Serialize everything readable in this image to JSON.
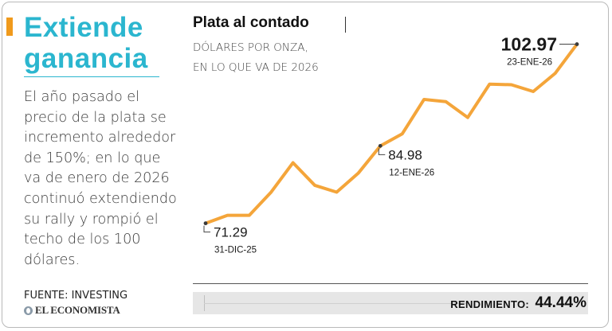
{
  "sidebar": {
    "headline_line1": "Extiende",
    "headline_line2": "ganancia",
    "body": "El año pasado el precio de la plata se incremento alrededor de 150%; en lo que va de enero de 2026 continuó extendiendo su rally y rompió el techo de los 100 dólares.",
    "source": "FUENTE: INVESTING",
    "brand": "EL ECONOMISTA"
  },
  "colors": {
    "accent": "#f09a1c",
    "headline": "#2bb6cf",
    "line": "#f4a53a",
    "point": "#3a3a3a"
  },
  "chart_data": {
    "type": "line",
    "title": "Plata al contado",
    "subtitle_line1": "DÓLARES POR ONZA,",
    "subtitle_line2": "EN LO QUE VA DE 2026",
    "ylim": [
      68,
      106
    ],
    "grid": false,
    "series": [
      {
        "values": [
          71.29,
          72.7,
          72.7,
          76.8,
          82.0,
          78.0,
          76.8,
          80.2,
          84.98,
          87.1,
          93.2,
          92.8,
          90.0,
          95.9,
          95.8,
          94.6,
          97.8,
          102.97
        ]
      }
    ],
    "annotations": [
      {
        "index": 0,
        "value": "71.29",
        "date": "31-DIC-25"
      },
      {
        "index": 8,
        "value": "84.98",
        "date": "12-ENE-26"
      },
      {
        "index": 17,
        "value": "102.97",
        "date": "23-ENE-26"
      }
    ],
    "yield_label": "RENDIMIENTO:",
    "yield_value": "44.44%"
  }
}
